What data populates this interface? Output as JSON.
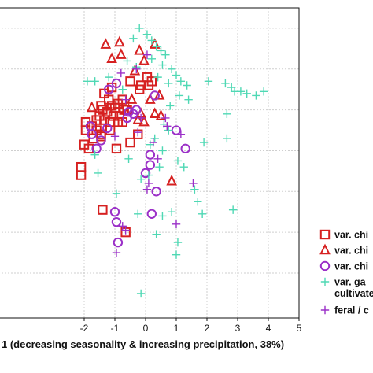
{
  "chart_data": {
    "type": "scatter",
    "xlabel": "1 (decreasing seasonality & increasing precipitation, 38%)",
    "xlim": [
      -5,
      5
    ],
    "ylim": [
      -4.6,
      3.0
    ],
    "xticks": [
      {
        "v": -2,
        "label": "-2"
      },
      {
        "v": -1,
        "label": "-1"
      },
      {
        "v": 0,
        "label": "0"
      },
      {
        "v": 1,
        "label": "1"
      },
      {
        "v": 2,
        "label": "2"
      },
      {
        "v": 3,
        "label": "3"
      },
      {
        "v": 4,
        "label": "4"
      },
      {
        "v": 5,
        "label": "5"
      }
    ],
    "yticks": [
      2.5,
      1.5,
      0.5,
      -0.5,
      -1.5,
      -2.5,
      -3.5
    ],
    "grid": true,
    "legend_position": "right",
    "series": [
      {
        "name": "var. chi",
        "marker": "square",
        "color": "#d62020",
        "points": [
          [
            -0.5,
            1.2
          ],
          [
            -0.2,
            1.0
          ],
          [
            0.05,
            1.3
          ],
          [
            0.2,
            1.2
          ],
          [
            -1.35,
            0.9
          ],
          [
            -1.2,
            0.75
          ],
          [
            -1.1,
            0.6
          ],
          [
            -1.0,
            0.55
          ],
          [
            -0.9,
            0.65
          ],
          [
            -0.75,
            0.75
          ],
          [
            -1.45,
            0.6
          ],
          [
            -1.4,
            0.5
          ],
          [
            -1.25,
            0.45
          ],
          [
            -1.05,
            0.35
          ],
          [
            -0.85,
            0.35
          ],
          [
            -0.7,
            0.5
          ],
          [
            -1.6,
            0.25
          ],
          [
            -1.5,
            0.35
          ],
          [
            -1.35,
            0.25
          ],
          [
            -1.15,
            0.2
          ],
          [
            -0.9,
            0.2
          ],
          [
            -0.75,
            0.2
          ],
          [
            -1.95,
            0.2
          ],
          [
            -1.75,
            0.1
          ],
          [
            -1.6,
            0.0
          ],
          [
            -1.45,
            -0.1
          ],
          [
            -1.15,
            0.0
          ],
          [
            -1.95,
            0.0
          ],
          [
            -2.0,
            -0.35
          ],
          [
            -1.85,
            -0.45
          ],
          [
            -0.95,
            -0.45
          ],
          [
            -0.25,
            -0.1
          ],
          [
            -0.5,
            -0.3
          ],
          [
            -1.45,
            -0.15
          ],
          [
            -1.7,
            -0.2
          ],
          [
            -2.1,
            -0.9
          ],
          [
            -2.1,
            -1.1
          ],
          [
            -0.15,
            1.1
          ],
          [
            -1.4,
            -1.95
          ],
          [
            -0.65,
            -2.5
          ],
          [
            0.1,
            1.1
          ],
          [
            -0.6,
            0.5
          ],
          [
            -1.1,
            1.05
          ]
        ]
      },
      {
        "name": "var. chi",
        "marker": "triangle",
        "color": "#d62020",
        "points": [
          [
            -1.3,
            2.1
          ],
          [
            -0.85,
            2.15
          ],
          [
            -0.2,
            1.95
          ],
          [
            0.3,
            2.1
          ],
          [
            -0.05,
            1.7
          ],
          [
            -0.8,
            1.85
          ],
          [
            -1.1,
            1.75
          ],
          [
            -0.35,
            1.45
          ],
          [
            -0.45,
            0.75
          ],
          [
            0.15,
            0.75
          ],
          [
            0.45,
            0.85
          ],
          [
            -0.15,
            0.4
          ],
          [
            -0.55,
            0.5
          ],
          [
            0.3,
            0.4
          ],
          [
            0.5,
            0.35
          ],
          [
            -0.05,
            0.2
          ],
          [
            0.85,
            -1.25
          ],
          [
            -1.75,
            0.55
          ],
          [
            -0.25,
            0.25
          ]
        ]
      },
      {
        "name": "var. chi",
        "marker": "circle",
        "color": "#9b30c8",
        "points": [
          [
            -0.95,
            1.15
          ],
          [
            -1.2,
            1.0
          ],
          [
            0.3,
            0.85
          ],
          [
            -0.4,
            0.4
          ],
          [
            -0.55,
            0.45
          ],
          [
            -1.8,
            0.1
          ],
          [
            -1.25,
            0.05
          ],
          [
            -1.75,
            -0.1
          ],
          [
            -1.45,
            -0.25
          ],
          [
            -1.6,
            -0.45
          ],
          [
            -0.3,
            0.5
          ],
          [
            0.15,
            -0.6
          ],
          [
            0.15,
            -0.85
          ],
          [
            0.0,
            -1.05
          ],
          [
            1.0,
            0.0
          ],
          [
            1.3,
            -0.45
          ],
          [
            -1.0,
            -2.0
          ],
          [
            -0.95,
            -2.25
          ],
          [
            -0.9,
            -2.75
          ],
          [
            0.2,
            -2.05
          ],
          [
            0.35,
            -1.5
          ],
          [
            -0.6,
            0.3
          ]
        ]
      },
      {
        "name": "var. ga",
        "marker": "plus",
        "color": "#4fd8b4",
        "points": [
          [
            -0.2,
            2.5
          ],
          [
            0.05,
            2.35
          ],
          [
            -0.4,
            2.25
          ],
          [
            0.2,
            2.2
          ],
          [
            0.35,
            2.05
          ],
          [
            0.5,
            1.95
          ],
          [
            0.65,
            1.85
          ],
          [
            0.2,
            1.75
          ],
          [
            0.55,
            1.6
          ],
          [
            0.85,
            1.5
          ],
          [
            1.0,
            1.35
          ],
          [
            1.15,
            1.2
          ],
          [
            1.35,
            1.1
          ],
          [
            0.75,
            1.15
          ],
          [
            0.4,
            1.3
          ],
          [
            -0.3,
            1.55
          ],
          [
            -0.6,
            1.7
          ],
          [
            -1.65,
            1.2
          ],
          [
            -1.9,
            1.2
          ],
          [
            -1.2,
            1.3
          ],
          [
            2.05,
            1.2
          ],
          [
            2.6,
            1.15
          ],
          [
            2.8,
            1.05
          ],
          [
            2.9,
            0.95
          ],
          [
            3.1,
            0.95
          ],
          [
            3.3,
            0.9
          ],
          [
            3.6,
            0.85
          ],
          [
            3.85,
            0.95
          ],
          [
            1.1,
            0.85
          ],
          [
            1.4,
            0.75
          ],
          [
            0.8,
            0.6
          ],
          [
            0.6,
            0.15
          ],
          [
            0.75,
            0.0
          ],
          [
            0.55,
            -0.5
          ],
          [
            0.3,
            -0.2
          ],
          [
            0.45,
            -0.9
          ],
          [
            0.1,
            -1.1
          ],
          [
            1.05,
            -0.75
          ],
          [
            1.25,
            -0.9
          ],
          [
            1.6,
            -1.45
          ],
          [
            1.7,
            -1.75
          ],
          [
            1.85,
            -2.05
          ],
          [
            2.65,
            -0.2
          ],
          [
            2.85,
            -1.95
          ],
          [
            2.65,
            0.4
          ],
          [
            -1.65,
            -0.6
          ],
          [
            -1.55,
            -1.05
          ],
          [
            -0.55,
            -0.7
          ],
          [
            -0.95,
            -1.55
          ],
          [
            -0.15,
            -1.2
          ],
          [
            -0.25,
            -2.05
          ],
          [
            0.55,
            -2.1
          ],
          [
            0.35,
            -2.55
          ],
          [
            1.05,
            -2.75
          ],
          [
            1.0,
            -3.05
          ],
          [
            0.85,
            -2.0
          ],
          [
            -0.15,
            -4.0
          ],
          [
            -0.75,
            1.0
          ],
          [
            0.15,
            -0.35
          ],
          [
            1.9,
            -0.3
          ]
        ]
      },
      {
        "name": "feral / c",
        "marker": "plus",
        "color": "#9b30c8",
        "points": [
          [
            -0.3,
            1.5
          ],
          [
            0.05,
            1.85
          ],
          [
            -0.8,
            1.4
          ],
          [
            0.65,
            0.3
          ],
          [
            -0.25,
            -0.05
          ],
          [
            0.25,
            -0.3
          ],
          [
            0.7,
            0.1
          ],
          [
            1.15,
            -0.1
          ],
          [
            -0.15,
            0.3
          ],
          [
            -0.65,
            0.75
          ],
          [
            0.4,
            -0.7
          ],
          [
            0.1,
            -1.3
          ],
          [
            0.05,
            -1.45
          ],
          [
            -0.65,
            -2.45
          ],
          [
            -0.75,
            -2.35
          ],
          [
            -0.95,
            -3.0
          ],
          [
            1.55,
            -1.3
          ],
          [
            1.0,
            -2.3
          ],
          [
            -1.0,
            -0.15
          ]
        ]
      }
    ],
    "legend": [
      {
        "label": "var. chi",
        "marker": "square",
        "color": "#d62020"
      },
      {
        "label": "var. chi",
        "marker": "triangle",
        "color": "#d62020"
      },
      {
        "label": "var. chi",
        "marker": "circle",
        "color": "#9b30c8"
      },
      {
        "label": "var. ga",
        "label2": "cultivate",
        "marker": "plus",
        "color": "#4fd8b4"
      },
      {
        "label": "feral / c",
        "marker": "plus",
        "color": "#9b30c8"
      }
    ]
  }
}
